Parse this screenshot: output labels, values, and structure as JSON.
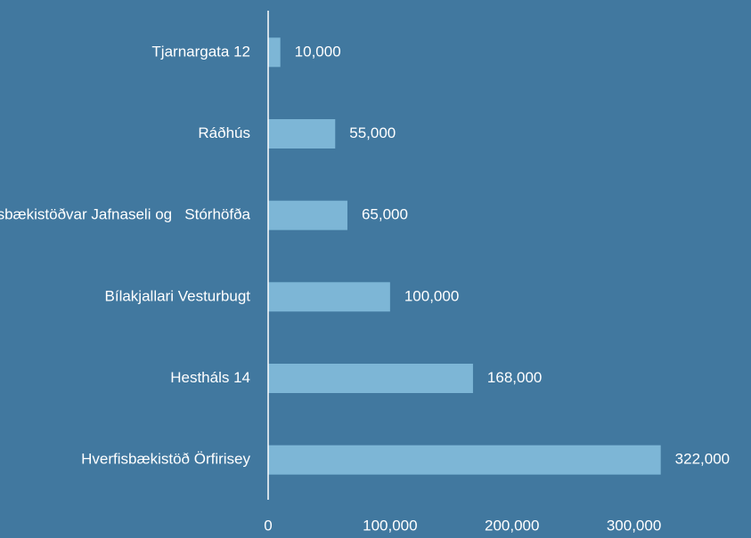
{
  "chart_data": {
    "type": "bar",
    "orientation": "horizontal",
    "categories": [
      "Tjarnargata 12",
      "Ráðhús",
      "Hverfisbækistöðvar Jafnaseli og   Stórhöfða",
      "Bílakjallari Vesturbugt",
      "Hestháls 14",
      "Hverfisbækistöð Örfirisey"
    ],
    "values": [
      10000,
      55000,
      65000,
      100000,
      168000,
      322000
    ],
    "value_labels": [
      "10,000",
      "55,000",
      "65,000",
      "100,000",
      "168,000",
      "322,000"
    ],
    "color": "#7db6d6",
    "xlim": [
      0,
      350000
    ],
    "xticks": [
      0,
      {
        "value": 100000,
        "label": "100,000"
      },
      {
        "value": 200000,
        "label": "200,000"
      },
      {
        "value": 300000,
        "label": "300,000"
      }
    ],
    "grid": false
  }
}
